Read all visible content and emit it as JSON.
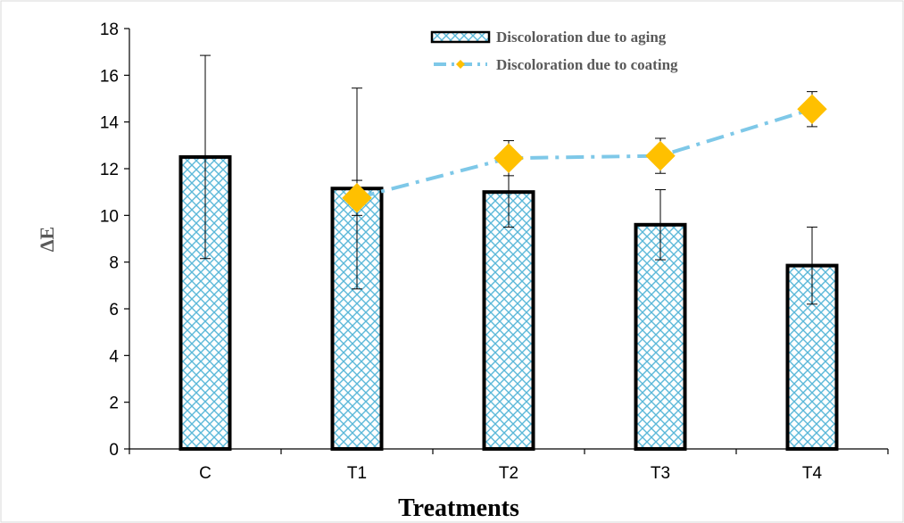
{
  "chart_data": {
    "type": "bar",
    "xlabel": "Treatments",
    "ylabel": "ΔE",
    "ylim": [
      0,
      18
    ],
    "yticks": [
      0,
      2,
      4,
      6,
      8,
      10,
      12,
      14,
      16,
      18
    ],
    "categories": [
      "C",
      "T1",
      "T2",
      "T3",
      "T4"
    ],
    "grid": false,
    "legend_position": "top-right",
    "series": [
      {
        "name": "Discoloration due to aging",
        "type": "bar",
        "pattern": "crosshatch",
        "color": "#5bb8d9",
        "edge_color": "#000000",
        "values": [
          12.5,
          11.15,
          11.0,
          9.6,
          7.85
        ],
        "error": [
          4.35,
          4.3,
          1.5,
          1.5,
          1.65
        ]
      },
      {
        "name": "Discoloration due to coating",
        "type": "line",
        "line_style": "dash-dot",
        "line_color": "#7ec8e8",
        "marker": "diamond",
        "marker_color": "#ffc000",
        "x": [
          "T1",
          "T2",
          "T3",
          "T4"
        ],
        "values": [
          10.75,
          12.45,
          12.55,
          14.55
        ],
        "error": [
          0.75,
          0.75,
          0.75,
          0.75
        ]
      }
    ]
  }
}
